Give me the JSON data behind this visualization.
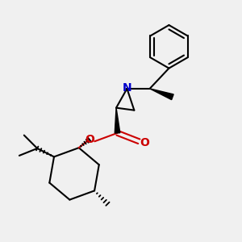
{
  "bg_color": "#f0f0f0",
  "bond_color": "#000000",
  "nitrogen_color": "#0000cc",
  "oxygen_color": "#cc0000",
  "line_width": 1.5,
  "fig_width": 3.0,
  "fig_height": 3.0,
  "dpi": 100,
  "xlim": [
    0,
    10
  ],
  "ylim": [
    0,
    10
  ]
}
